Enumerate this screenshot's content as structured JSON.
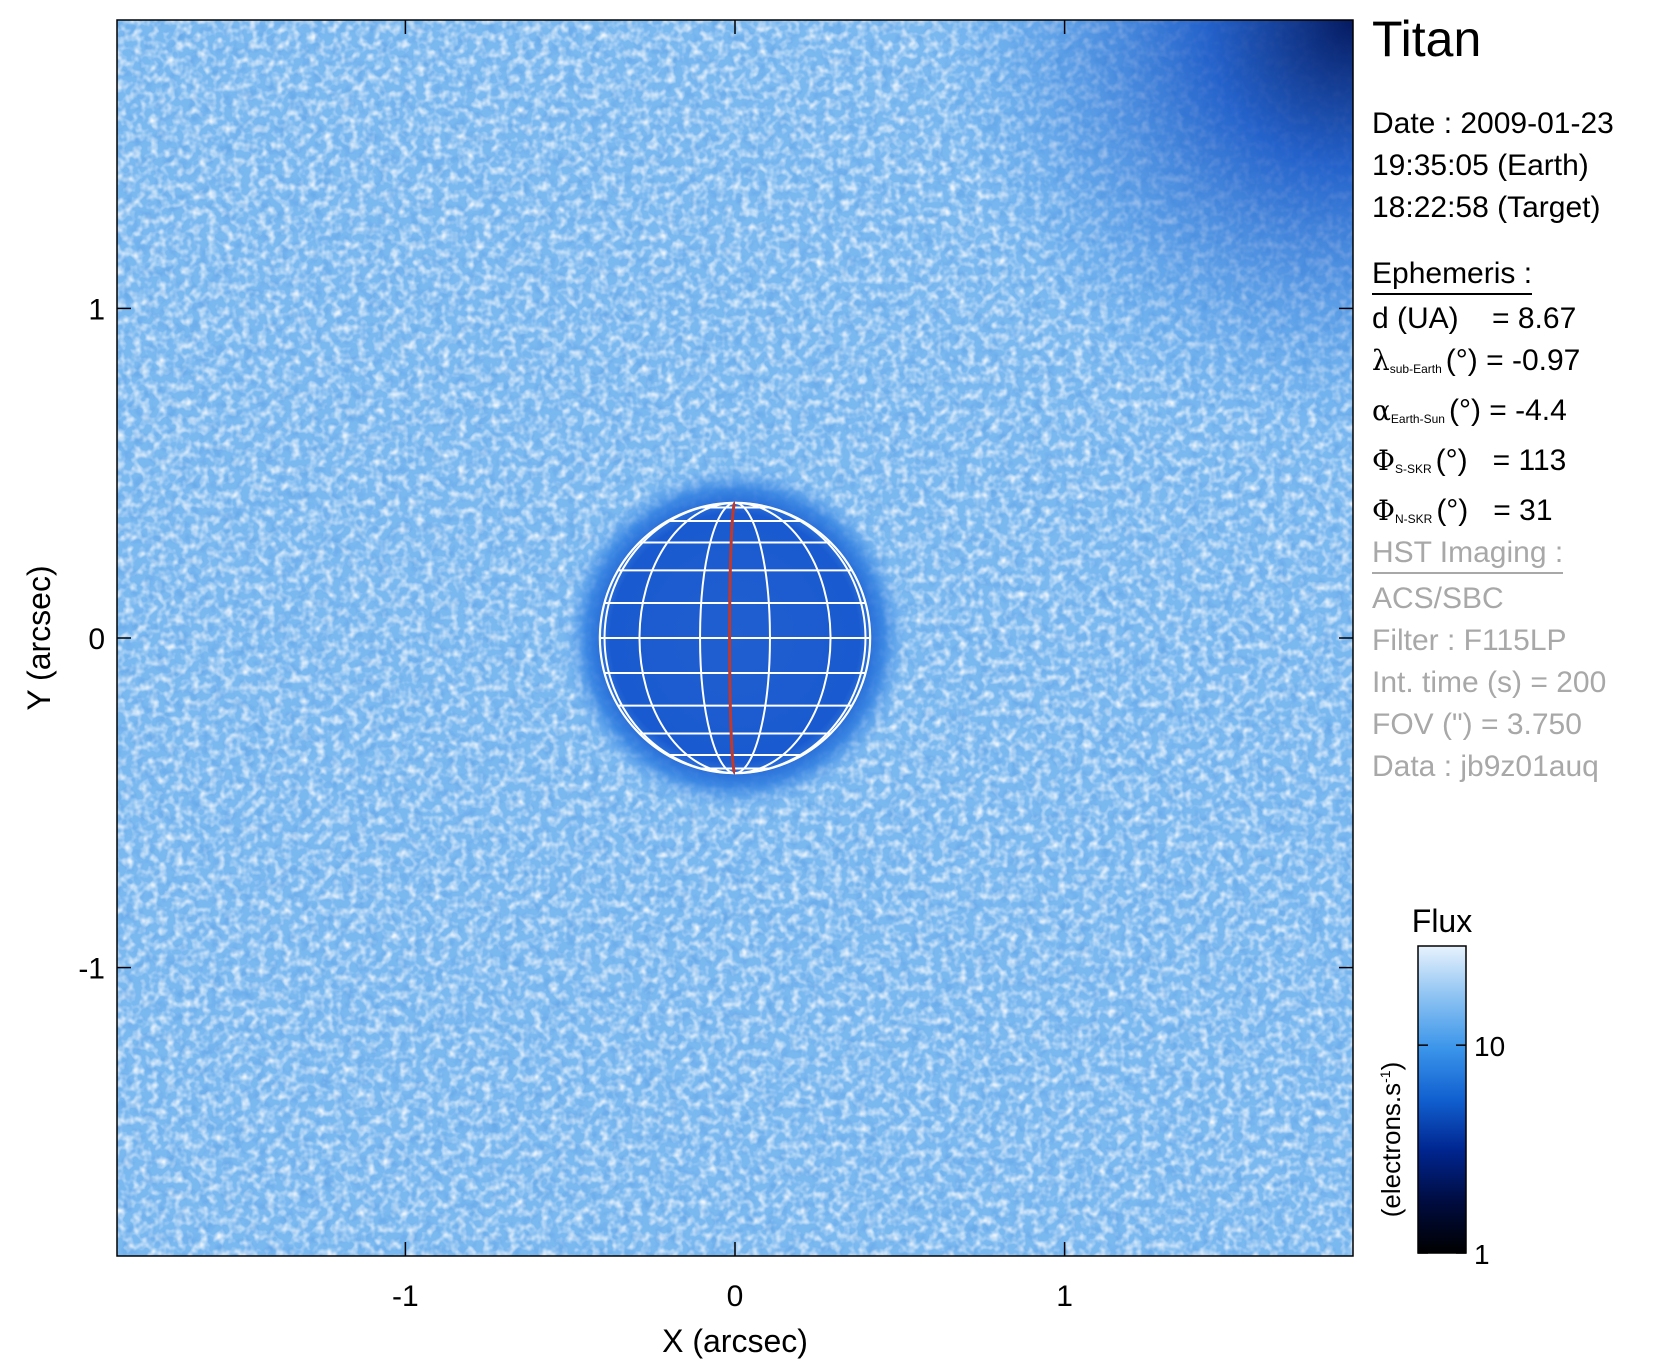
{
  "chart_data": {
    "type": "heatmap",
    "title": "Titan",
    "xlabel": "X (arcsec)",
    "ylabel": "Y (arcsec)",
    "xlim": [
      -1.875,
      1.875
    ],
    "ylim": [
      -1.875,
      1.875
    ],
    "xticks": [
      {
        "value": -1,
        "label": "-1"
      },
      {
        "value": 0,
        "label": "0"
      },
      {
        "value": 1,
        "label": "1"
      }
    ],
    "yticks": [
      {
        "value": 1,
        "label": "1"
      },
      {
        "value": 0,
        "label": "0"
      },
      {
        "value": -1,
        "label": "-1"
      }
    ],
    "background_flux": 15,
    "disk": {
      "center": [
        0,
        0
      ],
      "radius": 0.41,
      "flux": 6,
      "meridian_color": "#c0392b",
      "grid_color": "#ffffff"
    },
    "colorbar": {
      "title": "Flux",
      "label": "(electrons.s",
      "label_exp": "-1",
      "label_close": ")",
      "scale": "log",
      "range": [
        1,
        30
      ],
      "ticks": [
        {
          "value": 10,
          "label": "10"
        },
        {
          "value": 1,
          "label": "1"
        }
      ],
      "colors": [
        "#000000",
        "#000c40",
        "#00258f",
        "#1160d0",
        "#3b95ea",
        "#8cc2f2",
        "#e7f2fd"
      ]
    }
  },
  "info": {
    "title": "Titan",
    "date_lines": [
      "Date : 2009-01-23",
      "19:35:05 (Earth)",
      "18:22:58 (Target)"
    ],
    "ephemeris_heading": "Ephemeris :",
    "ephemeris": [
      {
        "sym": "",
        "sub": "",
        "text": "d (UA)    = 8.67"
      },
      {
        "sym": "λ",
        "sub": "sub-Earth",
        "text": "(°) = -0.97"
      },
      {
        "sym": "α",
        "sub": "Earth-Sun",
        "text": "(°) = -4.4"
      },
      {
        "sym": "Φ",
        "sub": "S-SKR",
        "text": "(°)   = 113"
      },
      {
        "sym": "Φ",
        "sub": "N-SKR",
        "text": "(°)   = 31"
      }
    ],
    "hst_heading": "HST Imaging :",
    "hst_lines": [
      "ACS/SBC",
      "Filter : F115LP",
      "Int. time (s) = 200",
      "FOV (\") = 3.750",
      "Data : jb9z01auq"
    ]
  }
}
